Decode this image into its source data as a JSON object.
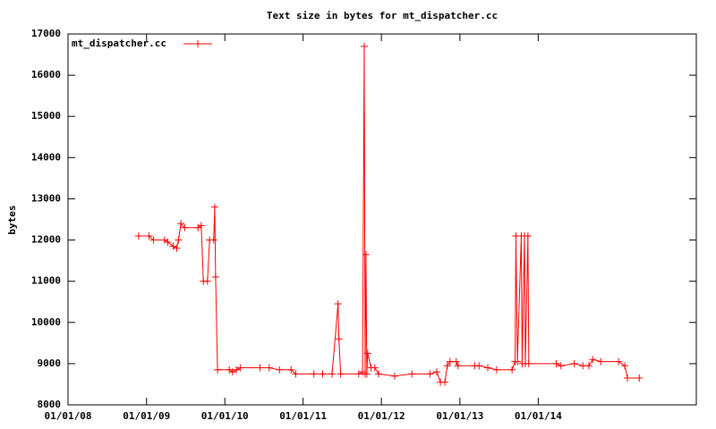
{
  "chart_data": {
    "type": "line",
    "title": "Text size in bytes for mt_dispatcher.cc",
    "y_label": "bytes",
    "x": [
      "2008-11-25",
      "2009-01-12",
      "2009-02-03",
      "2009-03-26",
      "2009-04-10",
      "2009-05-05",
      "2009-05-22",
      "2009-05-30",
      "2009-06-10",
      "2009-06-28",
      "2009-08-29",
      "2009-09-13",
      "2009-09-23",
      "2009-10-12",
      "2009-10-22",
      "2009-11-10",
      "2009-11-15",
      "2009-11-19",
      "2009-11-28",
      "2010-01-22",
      "2010-02-06",
      "2010-02-24",
      "2010-03-15",
      "2010-06-14",
      "2010-07-27",
      "2010-09-13",
      "2010-11-06",
      "2010-11-28",
      "2011-02-20",
      "2011-04-02",
      "2011-05-16",
      "2011-06-13",
      "2011-06-17",
      "2011-06-25",
      "2011-09-17",
      "2011-10-05",
      "2011-10-13",
      "2011-10-17",
      "2011-10-21",
      "2011-10-25",
      "2011-10-29",
      "2011-11-14",
      "2011-12-01",
      "2011-12-19",
      "2012-03-03",
      "2012-05-22",
      "2012-08-14",
      "2012-09-15",
      "2012-10-02",
      "2012-10-23",
      "2012-11-03",
      "2012-11-16",
      "2012-12-15",
      "2012-12-23",
      "2013-03-11",
      "2013-03-31",
      "2013-05-11",
      "2013-06-21",
      "2013-09-01",
      "2013-09-15",
      "2013-09-19",
      "2013-09-26",
      "2013-10-14",
      "2013-10-18",
      "2013-10-29",
      "2013-11-02",
      "2013-11-14",
      "2013-11-18",
      "2014-03-26",
      "2014-04-17",
      "2014-06-18",
      "2014-07-28",
      "2014-08-25",
      "2014-09-12",
      "2014-10-20",
      "2015-01-11",
      "2015-02-09",
      "2015-02-21",
      "2015-04-17"
    ],
    "series": [
      {
        "name": "mt_dispatcher.cc",
        "color": "#ff0000",
        "values": [
          12100,
          12100,
          12000,
          12000,
          11950,
          11850,
          11800,
          12000,
          12400,
          12300,
          12300,
          12350,
          11000,
          11000,
          12000,
          12000,
          12800,
          11100,
          8850,
          8850,
          8800,
          8850,
          8900,
          8900,
          8900,
          8850,
          8850,
          8750,
          8750,
          8750,
          8750,
          10450,
          9600,
          8750,
          8750,
          8800,
          16700,
          8750,
          11650,
          8750,
          9250,
          8900,
          8900,
          8750,
          8700,
          8750,
          8750,
          8800,
          8550,
          8550,
          8950,
          9050,
          9050,
          8950,
          8950,
          8950,
          8900,
          8850,
          8850,
          9050,
          12100,
          9050,
          12100,
          9000,
          12100,
          9000,
          12100,
          9000,
          9000,
          8950,
          9000,
          8950,
          8950,
          9100,
          9050,
          9050,
          8950,
          8650,
          8650
        ]
      }
    ],
    "xlim": [
      "2008-01-01",
      "2016-01-08"
    ],
    "xticks": [
      {
        "value": "2008-01-01",
        "label": "01/01/08"
      },
      {
        "value": "2009-01-01",
        "label": "01/01/09"
      },
      {
        "value": "2010-01-01",
        "label": "01/01/10"
      },
      {
        "value": "2011-01-01",
        "label": "01/01/11"
      },
      {
        "value": "2012-01-01",
        "label": "01/01/12"
      },
      {
        "value": "2013-01-01",
        "label": "01/01/13"
      },
      {
        "value": "2014-01-01",
        "label": "01/01/14"
      }
    ],
    "ylim": [
      8000,
      17000
    ],
    "yticks": [
      8000,
      9000,
      10000,
      11000,
      12000,
      13000,
      14000,
      15000,
      16000,
      17000
    ],
    "legend": "top-left"
  }
}
